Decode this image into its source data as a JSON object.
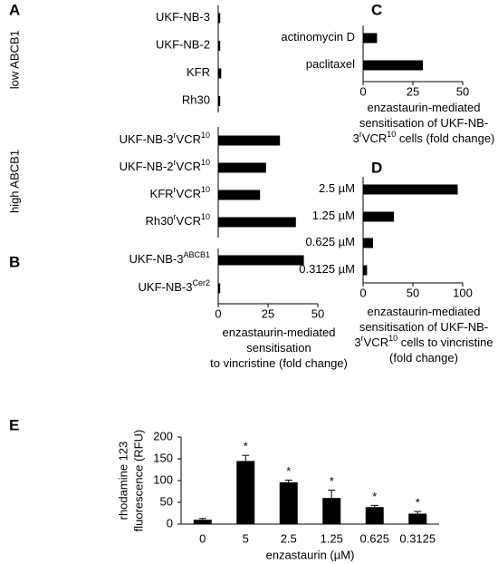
{
  "chart_data": [
    {
      "type": "hbar",
      "label": "A",
      "color": "#000000",
      "xlim": [
        0,
        50
      ],
      "groups": [
        {
          "name": "low ABCB1",
          "categories": [
            [
              "UKF-NB-3"
            ],
            [
              "UKF-NB-2"
            ],
            [
              "KFR"
            ],
            [
              "Rh30"
            ]
          ],
          "values": [
            1,
            1,
            1.5,
            1
          ]
        },
        {
          "name": "high ABCB1",
          "categories": [
            [
              "UKF-NB-3",
              "r",
              "VCR",
              "10"
            ],
            [
              "UKF-NB-2",
              "r",
              "VCR",
              "10"
            ],
            [
              "KFR",
              "r",
              "VCR",
              "10"
            ],
            [
              "Rh30",
              "r",
              "VCR",
              "10"
            ]
          ],
          "values": [
            31,
            24,
            21,
            39
          ]
        }
      ]
    },
    {
      "type": "hbar",
      "label": "B",
      "color": "#000000",
      "xlim": [
        0,
        50
      ],
      "xticks": [
        0,
        25,
        50
      ],
      "categories": [
        [
          "UKF-NB-3",
          "ABCB1"
        ],
        [
          "UKF-NB-3",
          "Cer2"
        ]
      ],
      "values": [
        43,
        1
      ],
      "xlabel": [
        [
          "enzastaurin-mediated"
        ],
        [
          "sensitisation"
        ],
        [
          "to vincristine (fold change)"
        ]
      ]
    },
    {
      "type": "hbar",
      "label": "C",
      "color": "#000000",
      "xlim": [
        0,
        50
      ],
      "xticks": [
        0,
        25,
        50
      ],
      "categories": [
        [
          "actinomycin D"
        ],
        [
          "paclitaxel"
        ]
      ],
      "values": [
        7,
        30
      ],
      "xlabel": [
        [
          "enzastaurin-mediated"
        ],
        [
          "sensitisation of UKF-NB-"
        ],
        [
          "3",
          "r",
          "VCR",
          "10",
          " cells (fold change)"
        ]
      ]
    },
    {
      "type": "hbar",
      "label": "D",
      "color": "#000000",
      "xlim": [
        0,
        100
      ],
      "xticks": [
        0,
        50,
        100
      ],
      "categories": [
        [
          "2.5 µM"
        ],
        [
          "1.25 µM"
        ],
        [
          "0.625 µM"
        ],
        [
          "0.3125 µM"
        ]
      ],
      "values": [
        95,
        31,
        10,
        4
      ],
      "xlabel": [
        [
          "enzastaurin-mediated"
        ],
        [
          "sensitisation of UKF-NB-"
        ],
        [
          "3",
          "r",
          "VCR",
          "10",
          " cells to vincristine"
        ],
        [
          "(fold change)"
        ]
      ]
    },
    {
      "type": "bar",
      "label": "E",
      "color": "#000000",
      "ylim": [
        0,
        200
      ],
      "yticks": [
        0,
        50,
        100,
        150,
        200
      ],
      "categories": [
        "0",
        "5",
        "2.5",
        "1.25",
        "0.625",
        "0.3125"
      ],
      "values": [
        10,
        145,
        96,
        60,
        39,
        24
      ],
      "errors": [
        3,
        13,
        5,
        18,
        4,
        5
      ],
      "annotations": [
        null,
        "*",
        "*",
        "*",
        "*",
        "*"
      ],
      "ylabel": [
        "rhodamine 123",
        "fluorescence (RFU)"
      ],
      "xlabel": "enzastaurin (µM)"
    }
  ]
}
